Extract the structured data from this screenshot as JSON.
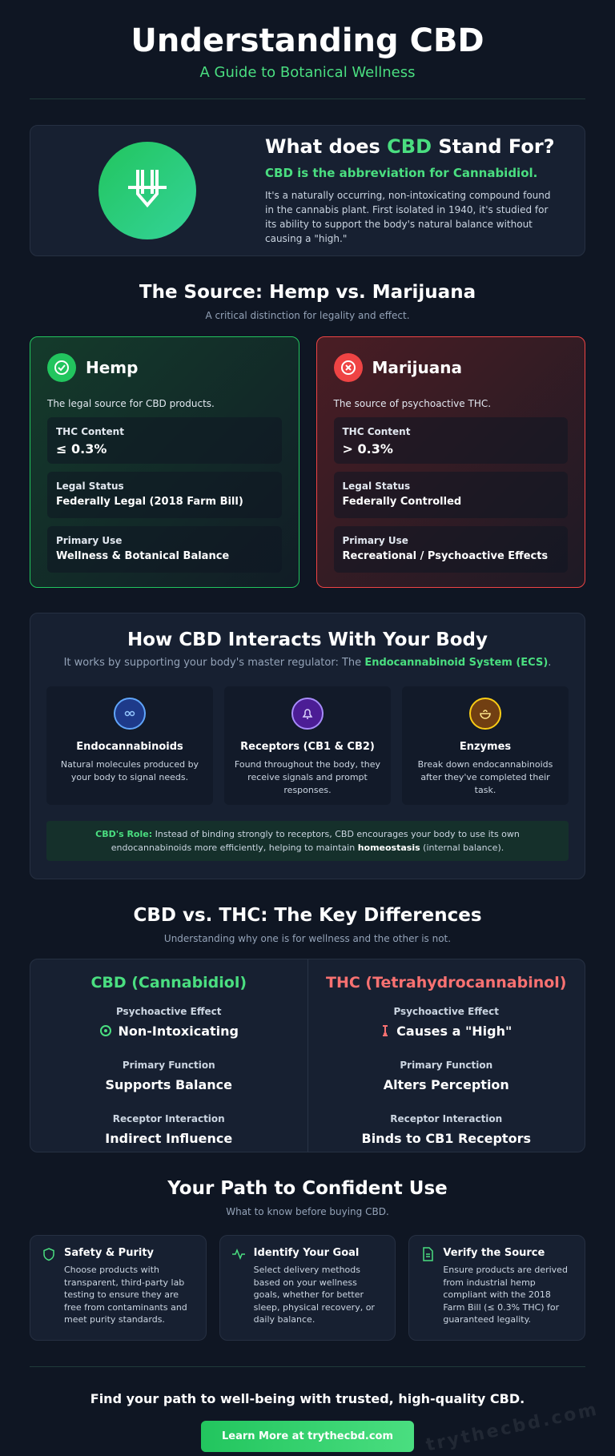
{
  "header": {
    "title": "Understanding CBD",
    "subtitle": "A Guide to Botanical Wellness"
  },
  "intro": {
    "heading_parts": [
      "What does ",
      "CBD",
      " Stand For?"
    ],
    "tagline": "CBD is the abbreviation for Cannabidiol.",
    "body": "It's a naturally occurring, non-intoxicating compound found in the cannabis plant. First isolated in 1940, it's studied for its ability to support the body's natural balance without causing a \"high.\""
  },
  "source": {
    "title": "The Source: Hemp vs. Marijuana",
    "subtitle": "A critical distinction for legality and effect.",
    "cards": [
      {
        "name": "Hemp",
        "description": "The legal source for CBD products.",
        "rows": [
          {
            "label": "THC Content",
            "value": "≤ 0.3%"
          },
          {
            "label": "Legal Status",
            "value": "Federally Legal (2018 Farm Bill)"
          },
          {
            "label": "Primary Use",
            "value": "Wellness & Botanical Balance"
          }
        ]
      },
      {
        "name": "Marijuana",
        "description": "The source of psychoactive THC.",
        "rows": [
          {
            "label": "THC Content",
            "value": "> 0.3%"
          },
          {
            "label": "Legal Status",
            "value": "Federally Controlled"
          },
          {
            "label": "Primary Use",
            "value": "Recreational / Psychoactive Effects"
          }
        ]
      }
    ]
  },
  "ecs": {
    "title": "How CBD Interacts With Your Body",
    "subtitle_parts": [
      "It works by supporting your body's master regulator: The ",
      "Endocannabinoid System (ECS)",
      "."
    ],
    "items": [
      {
        "title": "Endocannabinoids",
        "body": "Natural molecules produced by your body to signal needs."
      },
      {
        "title": "Receptors (CB1 & CB2)",
        "body": "Found throughout the body, they receive signals and prompt responses."
      },
      {
        "title": "Enzymes",
        "body": "Break down endocannabinoids after they've completed their task."
      }
    ],
    "note_parts": [
      "CBD's Role:",
      " Instead of binding strongly to receptors, CBD encourages your body to use its own endocannabinoids more efficiently, helping to maintain ",
      "homeostasis",
      " (internal balance)."
    ]
  },
  "compare": {
    "title": "CBD vs. THC: The Key Differences",
    "subtitle": "Understanding why one is for wellness and the other is not.",
    "columns": [
      {
        "name": "CBD (Cannabidiol)",
        "rows": [
          {
            "label": "Psychoactive Effect",
            "value": "Non-Intoxicating"
          },
          {
            "label": "Primary Function",
            "value": "Supports Balance"
          },
          {
            "label": "Receptor Interaction",
            "value": "Indirect Influence"
          }
        ]
      },
      {
        "name": "THC (Tetrahydrocannabinol)",
        "rows": [
          {
            "label": "Psychoactive Effect",
            "value": "Causes a \"High\""
          },
          {
            "label": "Primary Function",
            "value": "Alters Perception"
          },
          {
            "label": "Receptor Interaction",
            "value": "Binds to CB1 Receptors"
          }
        ]
      }
    ]
  },
  "path": {
    "title": "Your Path to Confident Use",
    "subtitle": "What to know before buying CBD.",
    "items": [
      {
        "title": "Safety & Purity",
        "body": "Choose products with transparent, third-party lab testing to ensure they are free from contaminants and meet purity standards."
      },
      {
        "title": "Identify Your Goal",
        "body": "Select delivery methods based on your wellness goals, whether for better sleep, physical recovery, or daily balance."
      },
      {
        "title": "Verify the Source",
        "body": "Ensure products are derived from industrial hemp compliant with the 2018 Farm Bill (≤ 0.3% THC) for guaranteed legality."
      }
    ]
  },
  "footer": {
    "text": "Find your path to well-being with trusted, high-quality CBD.",
    "button": "Learn More at trythecbd.com",
    "watermark": "trythecbd.com"
  }
}
